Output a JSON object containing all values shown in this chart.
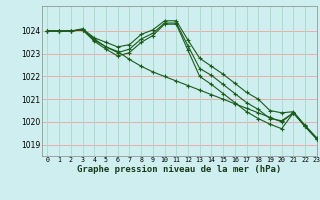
{
  "background_color": "#ceeef0",
  "grid_color_h": "#f0aaaa",
  "grid_color_v": "#aaddcc",
  "line_color": "#1a5c1a",
  "xlabel": "Graphe pression niveau de la mer (hPa)",
  "xlim": [
    -0.5,
    23
  ],
  "ylim": [
    1018.5,
    1025.1
  ],
  "yticks": [
    1019,
    1020,
    1021,
    1022,
    1023,
    1024
  ],
  "xticks": [
    0,
    1,
    2,
    3,
    4,
    5,
    6,
    7,
    8,
    9,
    10,
    11,
    12,
    13,
    14,
    15,
    16,
    17,
    18,
    19,
    20,
    21,
    22,
    23
  ],
  "series": [
    [
      1024.0,
      1024.0,
      1024.0,
      1024.1,
      1023.7,
      1023.5,
      1023.3,
      1023.4,
      1023.85,
      1024.05,
      1024.45,
      1024.45,
      1023.6,
      1022.8,
      1022.45,
      1022.1,
      1021.7,
      1021.3,
      1021.0,
      1020.5,
      1020.4,
      1020.45,
      1019.85,
      1019.3
    ],
    [
      1024.0,
      1024.0,
      1024.0,
      1024.05,
      1023.55,
      1023.2,
      1022.9,
      1023.05,
      1023.5,
      1023.8,
      1024.3,
      1024.3,
      1023.15,
      1022.0,
      1021.65,
      1021.25,
      1020.85,
      1020.45,
      1020.15,
      1019.9,
      1019.7,
      1020.4,
      1019.8,
      1019.25
    ],
    [
      1024.0,
      1024.0,
      1024.0,
      1024.05,
      1023.6,
      1023.3,
      1023.05,
      1023.2,
      1023.65,
      1023.9,
      1024.35,
      1024.35,
      1023.35,
      1022.35,
      1022.05,
      1021.65,
      1021.25,
      1020.85,
      1020.55,
      1020.15,
      1020.05,
      1020.4,
      1019.8,
      1019.25
    ],
    [
      1024.0,
      1024.0,
      1024.0,
      1024.05,
      1023.65,
      1023.3,
      1023.1,
      1022.75,
      1022.45,
      1022.2,
      1022.0,
      1021.8,
      1021.6,
      1021.4,
      1021.2,
      1021.0,
      1020.8,
      1020.6,
      1020.4,
      1020.2,
      1020.0,
      1020.4,
      1019.8,
      1019.25
    ]
  ]
}
